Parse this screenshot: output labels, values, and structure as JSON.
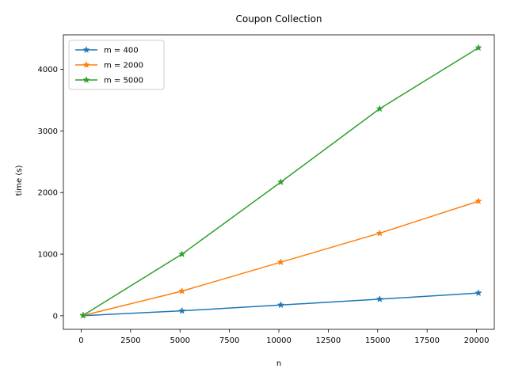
{
  "chart_data": {
    "type": "line",
    "title": "Coupon Collection",
    "xlabel": "n",
    "ylabel": "time (s)",
    "xlim": [
      -900,
      20900
    ],
    "ylim": [
      -220,
      4560
    ],
    "xticks": [
      0,
      2500,
      5000,
      7500,
      10000,
      12500,
      15000,
      17500,
      20000
    ],
    "yticks": [
      0,
      1000,
      2000,
      3000,
      4000
    ],
    "grid": false,
    "legend_position": "upper-left",
    "marker": "star",
    "series": [
      {
        "name": "m = 400",
        "color": "#1f77b4",
        "x": [
          100,
          5100,
          10100,
          15100,
          20100
        ],
        "y": [
          2,
          80,
          175,
          270,
          370
        ]
      },
      {
        "name": "m = 2000",
        "color": "#ff7f0e",
        "x": [
          100,
          5100,
          10100,
          15100,
          20100
        ],
        "y": [
          5,
          400,
          870,
          1340,
          1860
        ]
      },
      {
        "name": "m = 5000",
        "color": "#2ca02c",
        "x": [
          100,
          5100,
          10100,
          15100,
          20100
        ],
        "y": [
          8,
          1000,
          2170,
          3360,
          4350
        ]
      }
    ]
  }
}
